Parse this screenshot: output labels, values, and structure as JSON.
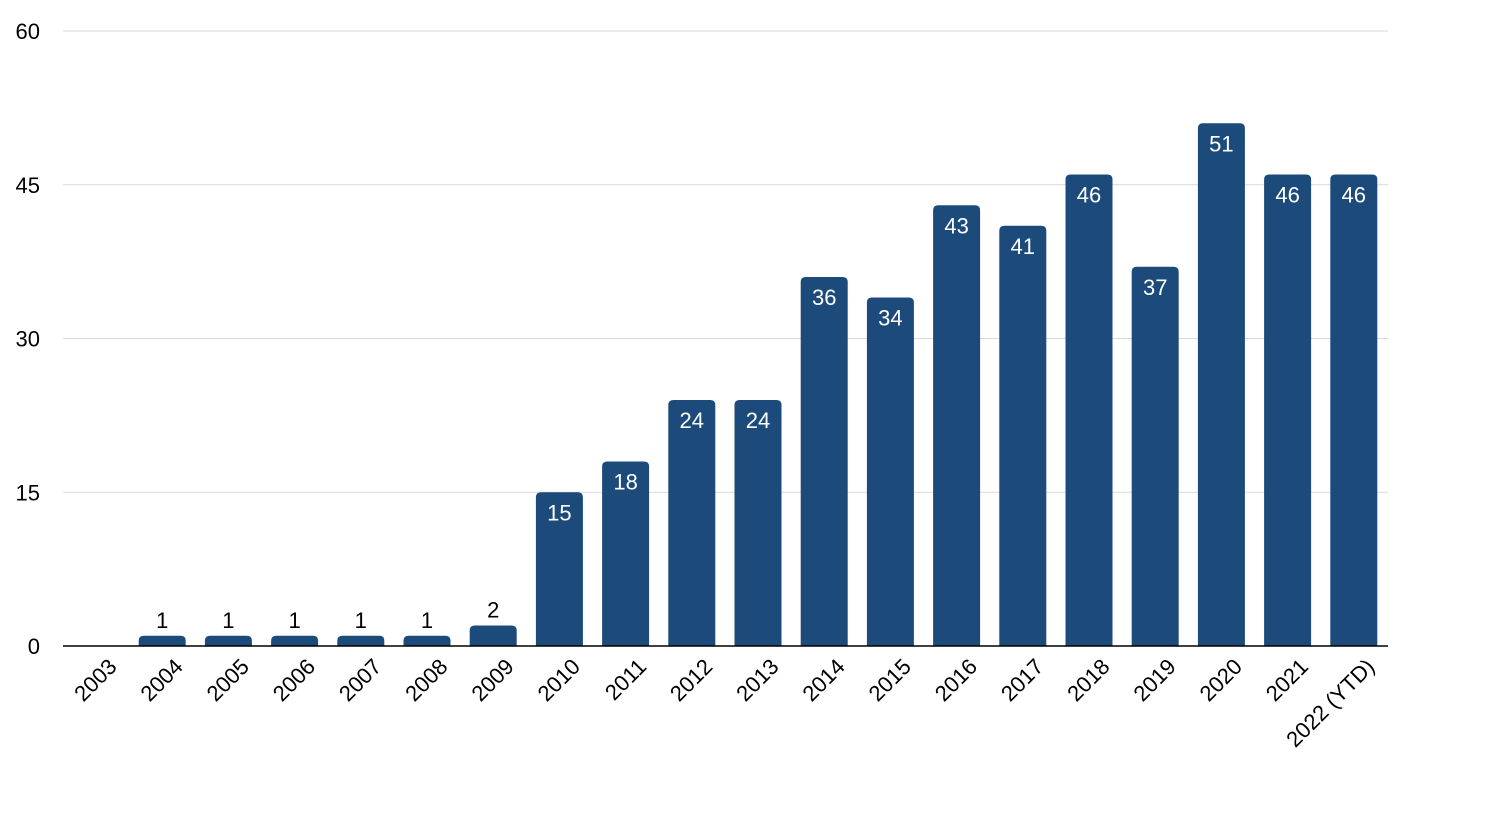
{
  "colors": {
    "bar": "#1c4b7b",
    "label_inside": "#ffffff",
    "label_outside": "#000000",
    "grid": "#d9d9d9"
  },
  "chart_data": {
    "type": "bar",
    "title": "",
    "xlabel": "",
    "ylabel": "",
    "ylim": [
      0,
      60
    ],
    "yticks": [
      0,
      15,
      30,
      45,
      60
    ],
    "grid": true,
    "legend": "none",
    "categories": [
      "2003",
      "2004",
      "2005",
      "2006",
      "2007",
      "2008",
      "2009",
      "2010",
      "2011",
      "2012",
      "2013",
      "2014",
      "2015",
      "2016",
      "2017",
      "2018",
      "2019",
      "2020",
      "2021",
      "2022 (YTD)"
    ],
    "values": [
      0,
      1,
      1,
      1,
      1,
      1,
      2,
      15,
      18,
      24,
      24,
      36,
      34,
      43,
      41,
      46,
      37,
      51,
      46,
      46
    ]
  }
}
